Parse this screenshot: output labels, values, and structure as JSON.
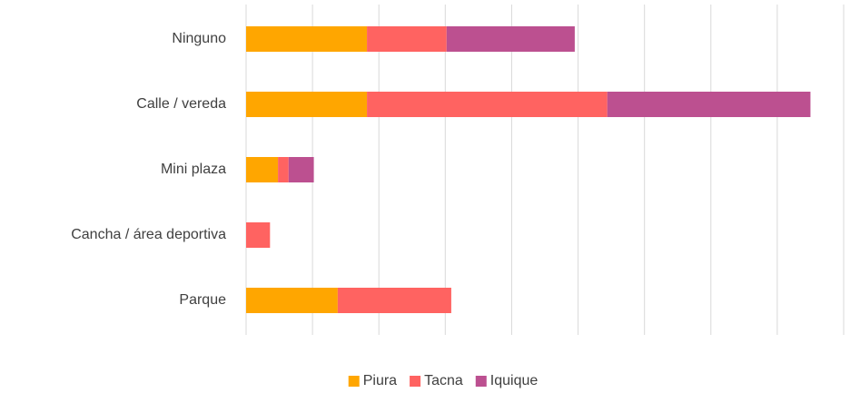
{
  "chart_data": {
    "type": "stacked_barh",
    "categories": [
      "Ninguno",
      "Calle / vereda",
      "Mini plaza",
      "Cancha / área deportiva",
      "Parque"
    ],
    "series": [
      {
        "name": "Piura",
        "color": "#ffa600",
        "values": [
          1.82,
          1.82,
          0.48,
          0,
          1.38
        ]
      },
      {
        "name": "Tacna",
        "color": "#ff6361",
        "values": [
          1.2,
          3.62,
          0.16,
          0.36,
          1.71
        ]
      },
      {
        "name": "Iquique",
        "color": "#bc5090",
        "values": [
          1.93,
          3.06,
          0.38,
          0,
          0
        ]
      }
    ],
    "xlim": [
      0,
      9
    ],
    "xticks": [
      0,
      1,
      2,
      3,
      4,
      5,
      6,
      7,
      8,
      9
    ],
    "grid": true,
    "legend": "bottom"
  }
}
